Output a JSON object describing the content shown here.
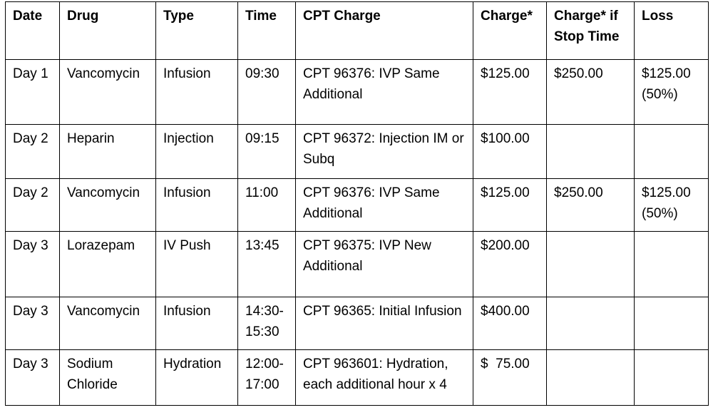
{
  "headers": [
    "Date",
    "Drug",
    "Type",
    "Time",
    "CPT Charge",
    "Charge*",
    "Charge* if Stop Time",
    "Loss"
  ],
  "rows": [
    {
      "date": "Day 1",
      "drug": "Vancomycin",
      "type": "Infusion",
      "time": "09:30",
      "cpt_charge": "CPT 96376:  IVP Same Additional",
      "charge": "$125.00",
      "charge_if_stop_time": "$250.00",
      "loss": "$125.00 (50%)"
    },
    {
      "date": "Day 2",
      "drug": "Heparin",
      "type": "Injection",
      "time": "09:15",
      "cpt_charge": "CPT 96372:  Injection IM or Subq",
      "charge": "$100.00",
      "charge_if_stop_time": "",
      "loss": ""
    },
    {
      "date": "Day 2",
      "drug": "Vancomycin",
      "type": "Infusion",
      "time": "11:00",
      "cpt_charge": "CPT 96376:  IVP Same Additional",
      "charge": "$125.00",
      "charge_if_stop_time": "$250.00",
      "loss": "$125.00 (50%)"
    },
    {
      "date": "Day 3",
      "drug": "Lorazepam",
      "type": "IV Push",
      "time": "13:45",
      "cpt_charge": "CPT 96375:  IVP New Additional",
      "charge": "$200.00",
      "charge_if_stop_time": "",
      "loss": ""
    },
    {
      "date": "Day 3",
      "drug": "Vancomycin",
      "type": "Infusion",
      "time": "14:30-15:30",
      "cpt_charge": "CPT 96365:  Initial Infusion",
      "charge": "$400.00",
      "charge_if_stop_time": "",
      "loss": ""
    },
    {
      "date": "Day 3",
      "drug": "Sodium Chloride",
      "type": "Hydration",
      "time": "12:00-17:00",
      "cpt_charge": "CPT 963601:  Hydration, each additional hour x 4",
      "charge": "$  75.00",
      "charge_if_stop_time": "",
      "loss": ""
    }
  ]
}
